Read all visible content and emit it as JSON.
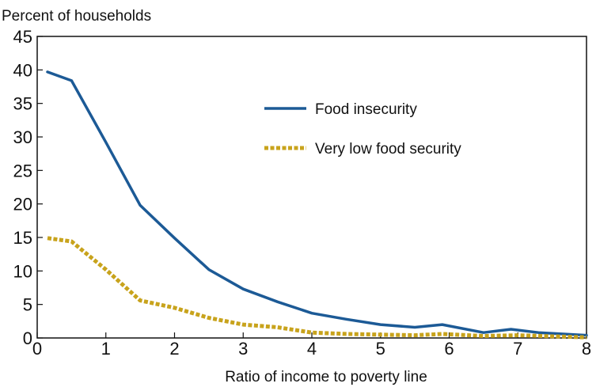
{
  "chart_data": {
    "type": "line",
    "title": "",
    "ylabel": "Percent of households",
    "xlabel": "Ratio of income to poverty line",
    "xlim": [
      0,
      8
    ],
    "ylim": [
      0,
      45
    ],
    "x_ticks": [
      0,
      1,
      2,
      3,
      4,
      5,
      6,
      7,
      8
    ],
    "y_ticks": [
      0,
      5,
      10,
      15,
      20,
      25,
      30,
      35,
      40,
      45
    ],
    "grid": false,
    "legend_position": "upper-right inside plot",
    "series": [
      {
        "name": "Food insecurity",
        "style": "solid",
        "color": "#1c5a96",
        "x": [
          0.15,
          0.5,
          1.0,
          1.5,
          2.0,
          2.5,
          3.0,
          3.5,
          4.0,
          4.5,
          5.0,
          5.5,
          5.9,
          6.5,
          6.9,
          7.3,
          8.0
        ],
        "values": [
          39.7,
          38.4,
          29.2,
          19.8,
          14.9,
          10.2,
          7.3,
          5.4,
          3.7,
          2.8,
          2.0,
          1.6,
          2.0,
          0.8,
          1.3,
          0.8,
          0.4
        ]
      },
      {
        "name": "Very low food security",
        "style": "dotted",
        "color": "#c8a31c",
        "x": [
          0.15,
          0.5,
          1.0,
          1.5,
          2.0,
          2.5,
          3.0,
          3.5,
          4.0,
          4.5,
          5.0,
          5.5,
          5.9,
          6.5,
          7.0,
          8.0
        ],
        "values": [
          14.9,
          14.4,
          10.2,
          5.6,
          4.5,
          3.0,
          2.0,
          1.6,
          0.8,
          0.6,
          0.5,
          0.4,
          0.6,
          0.3,
          0.4,
          0.1
        ]
      }
    ]
  }
}
